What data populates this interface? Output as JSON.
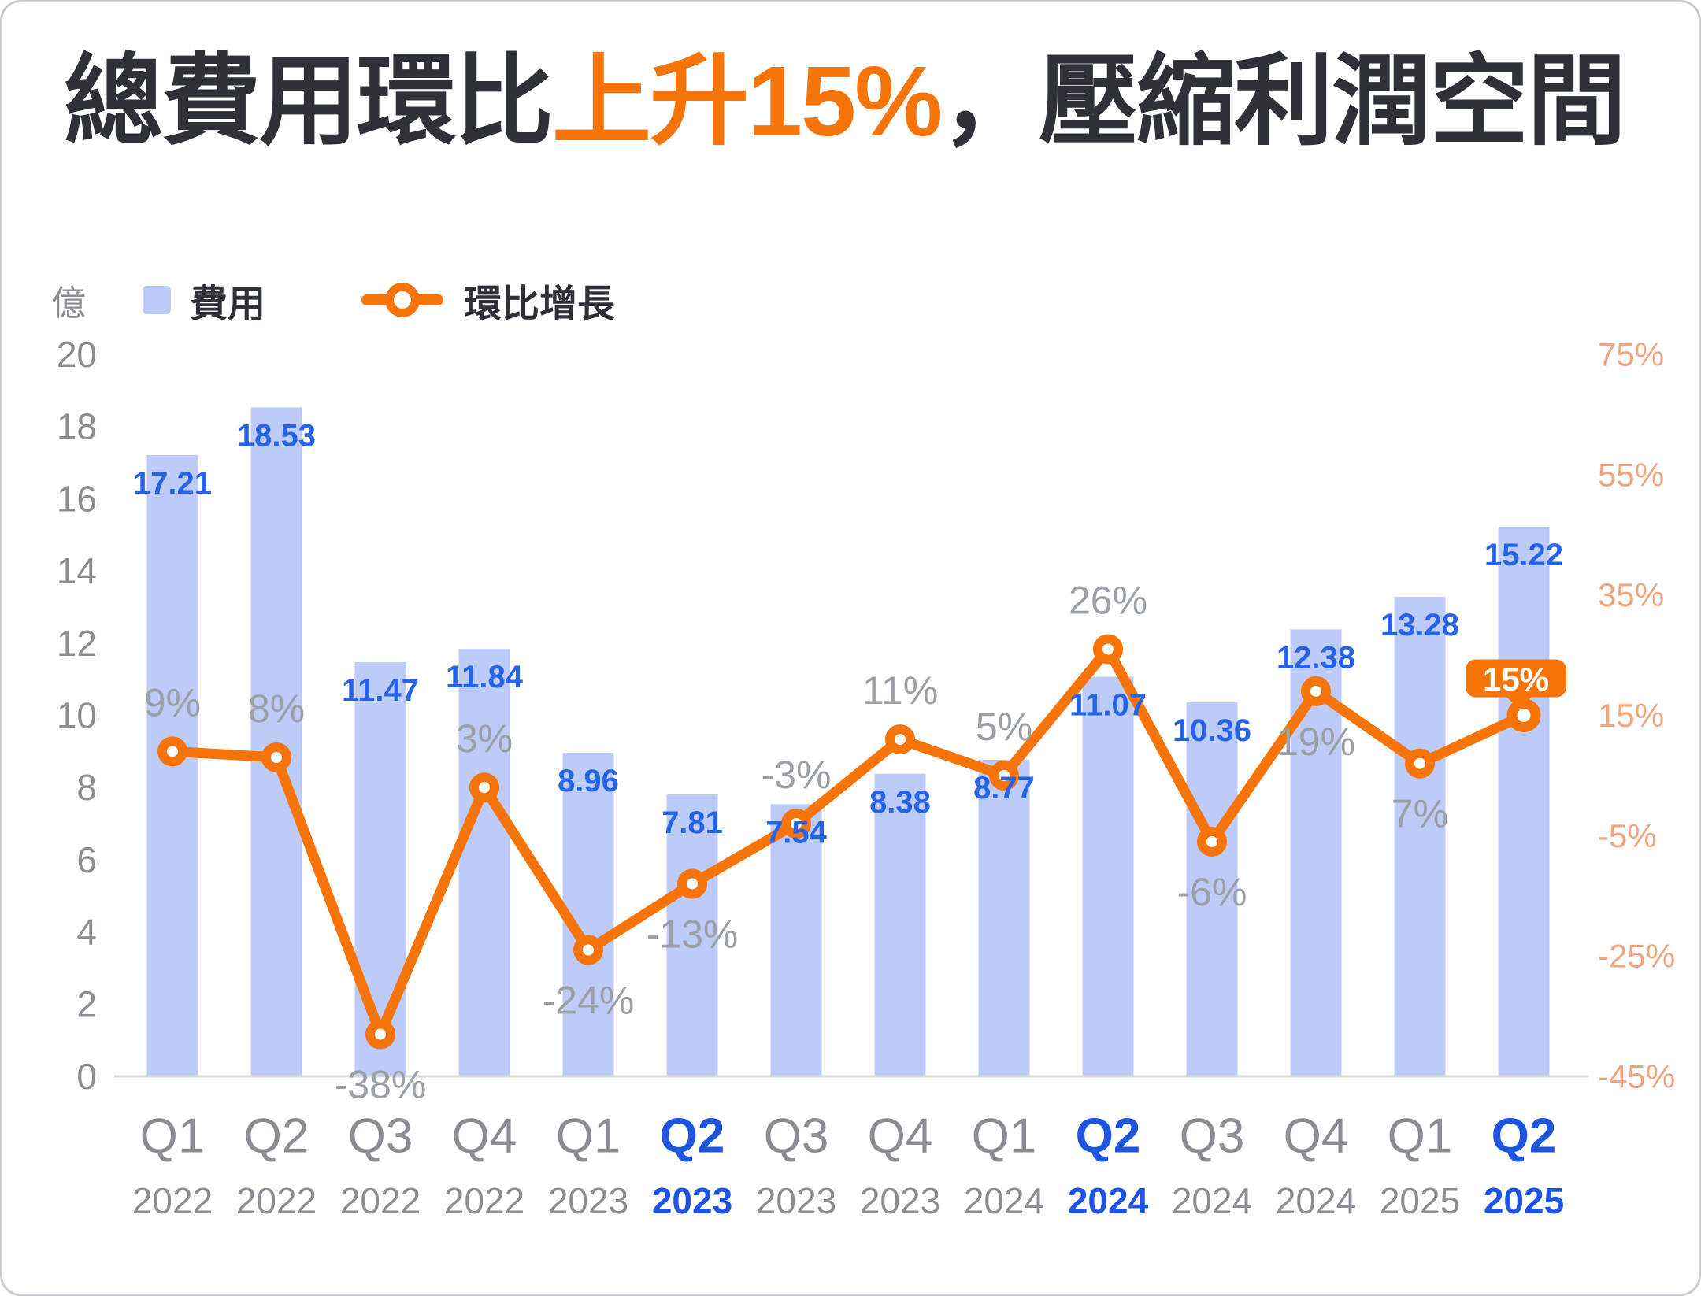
{
  "title": {
    "prefix": "總費用環比",
    "highlight": "上升15%",
    "suffix": "，壓縮利潤空間"
  },
  "legend": {
    "unit_label": "億",
    "bar_series_label": "費用",
    "line_series_label": "環比增長"
  },
  "colors": {
    "accent_orange": "#F7740A",
    "bar_fill": "#BCCBF8",
    "bar_value_blue": "#2563E8",
    "growth_label_gray": "#9B9FA6",
    "axis_label_gray": "#8A8D93",
    "right_axis_salmon": "#F0A57E",
    "quarter_highlight_blue": "#1E55E0",
    "title_dark": "#2E3138",
    "axis_line_gray": "#D8DADC",
    "badge_text_white": "#FFFFFF"
  },
  "chart_data": {
    "type": "bar+line combo",
    "title": "總費用環比上升15%，壓縮利潤空間",
    "grid": false,
    "legend_position": "top-left",
    "categories": [
      {
        "quarter": "Q1",
        "year": "2022",
        "highlighted": false
      },
      {
        "quarter": "Q2",
        "year": "2022",
        "highlighted": false
      },
      {
        "quarter": "Q3",
        "year": "2022",
        "highlighted": false
      },
      {
        "quarter": "Q4",
        "year": "2022",
        "highlighted": false
      },
      {
        "quarter": "Q1",
        "year": "2023",
        "highlighted": false
      },
      {
        "quarter": "Q2",
        "year": "2023",
        "highlighted": true
      },
      {
        "quarter": "Q3",
        "year": "2023",
        "highlighted": false
      },
      {
        "quarter": "Q4",
        "year": "2023",
        "highlighted": false
      },
      {
        "quarter": "Q1",
        "year": "2024",
        "highlighted": false
      },
      {
        "quarter": "Q2",
        "year": "2024",
        "highlighted": true
      },
      {
        "quarter": "Q3",
        "year": "2024",
        "highlighted": false
      },
      {
        "quarter": "Q4",
        "year": "2024",
        "highlighted": false
      },
      {
        "quarter": "Q1",
        "year": "2025",
        "highlighted": false
      },
      {
        "quarter": "Q2",
        "year": "2025",
        "highlighted": true
      }
    ],
    "series": [
      {
        "name": "費用",
        "type": "bar",
        "axis": "left",
        "unit": "億",
        "values": [
          17.21,
          18.53,
          11.47,
          11.84,
          8.96,
          7.81,
          7.54,
          8.38,
          8.77,
          11.07,
          10.36,
          12.38,
          13.28,
          15.22
        ],
        "labels": [
          "17.21",
          "18.53",
          "11.47",
          "11.84",
          "8.96",
          "7.81",
          "7.54",
          "8.38",
          "8.77",
          "11.07",
          "10.36",
          "12.38",
          "13.28",
          "15.22"
        ]
      },
      {
        "name": "環比增長",
        "type": "line",
        "axis": "right",
        "unit": "%",
        "values": [
          9,
          8,
          -38,
          3,
          -24,
          -13,
          -3,
          11,
          5,
          26,
          -6,
          19,
          7,
          15
        ],
        "labels": [
          "9%",
          "8%",
          "-38%",
          "3%",
          "-24%",
          "-13%",
          "-3%",
          "11%",
          "5%",
          "26%",
          "-6%",
          "19%",
          "7%",
          "15%"
        ],
        "label_positions": [
          "above",
          "above",
          "below",
          "above",
          "below",
          "below",
          "above",
          "above",
          "above",
          "above",
          "below",
          "below",
          "below",
          "badge"
        ]
      }
    ],
    "left_axis": {
      "unit": "億",
      "range": [
        0,
        20
      ],
      "ticks": [
        "0",
        "2",
        "4",
        "6",
        "8",
        "10",
        "12",
        "14",
        "16",
        "18",
        "20"
      ],
      "tick_values": [
        0,
        2,
        4,
        6,
        8,
        10,
        12,
        14,
        16,
        18,
        20
      ]
    },
    "right_axis": {
      "range": [
        -45,
        75
      ],
      "ticks": [
        "75%",
        "55%",
        "35%",
        "15%",
        "-5%",
        "-25%",
        "-45%"
      ],
      "tick_values": [
        75,
        55,
        35,
        15,
        -5,
        -25,
        -45
      ]
    },
    "badge": {
      "text": "15%",
      "attached_to": "Q2 2025"
    }
  }
}
